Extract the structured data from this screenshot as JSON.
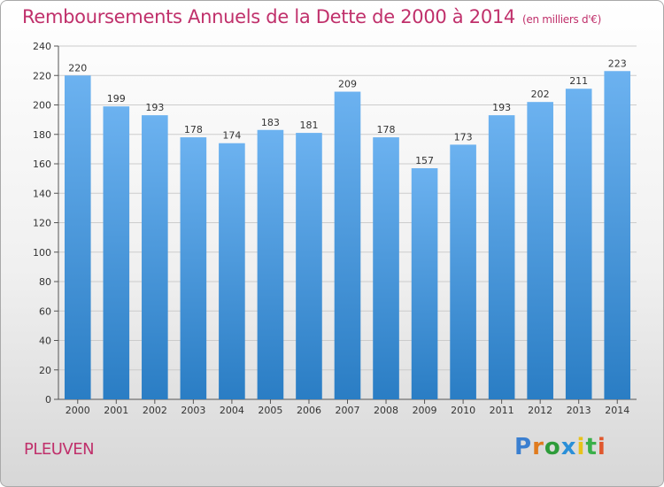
{
  "header": {
    "title": "Remboursements Annuels de la Dette de 2000 à 2014",
    "subtitle": "(en milliers d'€)"
  },
  "footer": {
    "location": "PLEUVEN",
    "brand_letters": [
      "P",
      "r",
      "o",
      "x",
      "i",
      "t",
      "i"
    ],
    "brand_colors": [
      "#3a7fd0",
      "#e07b1e",
      "#2e9c3a",
      "#2a8fd8",
      "#e8c21a",
      "#3ab04a",
      "#e0582e"
    ]
  },
  "colors": {
    "bar_top": "#6cb2f0",
    "bar_bottom": "#2a7dc4",
    "grid": "#cccccc",
    "text": "#333333",
    "accent": "#c0306b"
  },
  "chart_data": {
    "type": "bar",
    "title": "Remboursements Annuels de la Dette de 2000 à 2014",
    "xlabel": "",
    "ylabel": "",
    "categories": [
      "2000",
      "2001",
      "2002",
      "2003",
      "2004",
      "2005",
      "2006",
      "2007",
      "2008",
      "2009",
      "2010",
      "2011",
      "2012",
      "2013",
      "2014"
    ],
    "values": [
      220,
      199,
      193,
      178,
      174,
      183,
      181,
      209,
      178,
      157,
      173,
      193,
      202,
      211,
      223
    ],
    "ylim": [
      0,
      240
    ],
    "yticks": [
      0,
      20,
      40,
      60,
      80,
      100,
      120,
      140,
      160,
      180,
      200,
      220,
      240
    ],
    "grid": true,
    "legend": "none"
  }
}
